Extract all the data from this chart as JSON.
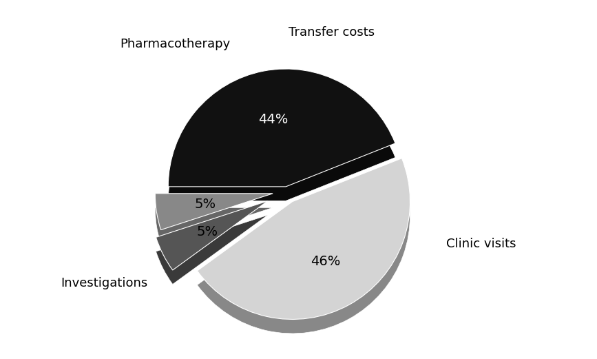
{
  "labels": [
    "Investigations",
    "Clinic visits",
    "Transfer costs",
    "Pharmacotherapy"
  ],
  "sizes": [
    44,
    46,
    5,
    5
  ],
  "colors_top": [
    "#111111",
    "#d4d4d4",
    "#555555",
    "#888888"
  ],
  "colors_side": [
    "#0a0a0a",
    "#888888",
    "#3a3a3a",
    "#666666"
  ],
  "explode": [
    0.04,
    0.1,
    0.18,
    0.12
  ],
  "pct_labels": [
    "44%",
    "46%",
    "5%",
    "5%"
  ],
  "startangle": 180,
  "bg_color": "#ffffff",
  "label_fontsize": 13,
  "pct_fontsize": 14,
  "depth": 0.12,
  "figsize": [
    8.67,
    5.21
  ],
  "dpi": 100
}
